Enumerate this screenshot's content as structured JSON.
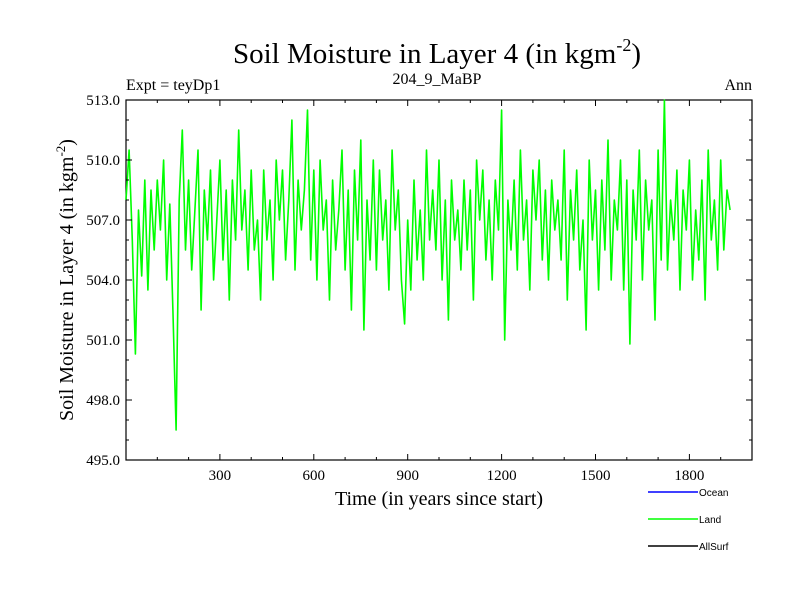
{
  "chart_data": {
    "type": "line",
    "title": "Soil Moisture in Layer 4 (in kgm",
    "title_superscript": "-2",
    "title_close": ")",
    "subtitle_left": "Expt = teyDp1",
    "subtitle_center": "204_9_MaBP",
    "subtitle_right": "Ann",
    "xlabel": "Time (in years since start)",
    "ylabel": "Soil Moisture in Layer 4 (in kgm",
    "ylabel_superscript": "-2",
    "ylabel_close": ")",
    "xlim": [
      0,
      2000
    ],
    "ylim": [
      495.0,
      513.0
    ],
    "x_ticks": [
      300,
      600,
      900,
      1200,
      1500,
      1800
    ],
    "x_tick_labels": [
      "300",
      "600",
      "900",
      "1200",
      "1500",
      "1800"
    ],
    "y_ticks": [
      495.0,
      498.0,
      501.0,
      504.0,
      507.0,
      510.0,
      513.0
    ],
    "y_tick_labels": [
      "495.0",
      "498.0",
      "501.0",
      "504.0",
      "507.0",
      "510.0",
      "513.0"
    ],
    "grid": false,
    "legend_position": "bottom-right, below plot",
    "series": [
      {
        "name": "Ocean",
        "color": "#0000ff",
        "values": []
      },
      {
        "name": "Land",
        "color": "#00ff00",
        "x_start": 0,
        "x_step": 10,
        "values": [
          508.0,
          510.5,
          506.0,
          500.3,
          507.5,
          504.2,
          509.0,
          503.5,
          508.5,
          505.5,
          509.0,
          506.5,
          510.0,
          504.0,
          507.8,
          502.5,
          496.5,
          508.0,
          511.5,
          505.5,
          509.0,
          504.5,
          507.5,
          510.5,
          502.5,
          508.5,
          506.0,
          509.5,
          504.0,
          507.0,
          510.0,
          505.0,
          508.5,
          503.0,
          509.0,
          506.0,
          511.5,
          506.5,
          508.5,
          504.5,
          509.5,
          505.5,
          507.0,
          503.0,
          509.5,
          506.0,
          508.0,
          504.0,
          510.0,
          507.0,
          509.5,
          505.0,
          508.0,
          512.0,
          504.5,
          509.0,
          506.5,
          508.5,
          512.5,
          505.0,
          509.5,
          504.0,
          510.0,
          506.5,
          508.0,
          503.0,
          509.0,
          505.5,
          507.5,
          510.5,
          504.5,
          508.5,
          502.5,
          509.5,
          506.0,
          511.0,
          501.5,
          508.0,
          505.0,
          510.0,
          504.5,
          509.5,
          506.0,
          508.0,
          503.5,
          510.5,
          506.5,
          508.5,
          504.0,
          501.8,
          507.0,
          503.5,
          509.0,
          505.0,
          507.5,
          504.0,
          510.5,
          506.0,
          508.5,
          505.5,
          510.0,
          504.0,
          508.0,
          502.0,
          509.0,
          506.0,
          507.5,
          504.5,
          509.0,
          505.5,
          508.5,
          503.0,
          510.0,
          507.0,
          509.5,
          505.0,
          508.0,
          504.0,
          509.0,
          506.5,
          512.5,
          501.0,
          508.0,
          505.5,
          509.0,
          504.5,
          510.5,
          506.0,
          508.0,
          503.5,
          509.5,
          507.0,
          510.0,
          505.0,
          508.5,
          504.0,
          509.0,
          506.5,
          508.0,
          505.0,
          510.5,
          503.0,
          508.5,
          506.0,
          509.5,
          504.5,
          507.0,
          501.5,
          510.0,
          506.0,
          508.5,
          503.5,
          509.0,
          505.5,
          511.0,
          504.0,
          508.0,
          506.5,
          510.0,
          503.5,
          509.0,
          500.8,
          508.5,
          506.0,
          510.5,
          504.0,
          509.0,
          506.5,
          508.0,
          502.0,
          510.5,
          505.0,
          513.0,
          504.5,
          508.0,
          506.0,
          509.5,
          503.5,
          508.5,
          506.5,
          510.0,
          504.0,
          507.5,
          505.0,
          509.0,
          503.0,
          510.5,
          506.0,
          508.0,
          504.5,
          510.0,
          505.5,
          508.5,
          507.5
        ]
      },
      {
        "name": "AllSurf",
        "color": "#000000",
        "values": []
      }
    ]
  }
}
